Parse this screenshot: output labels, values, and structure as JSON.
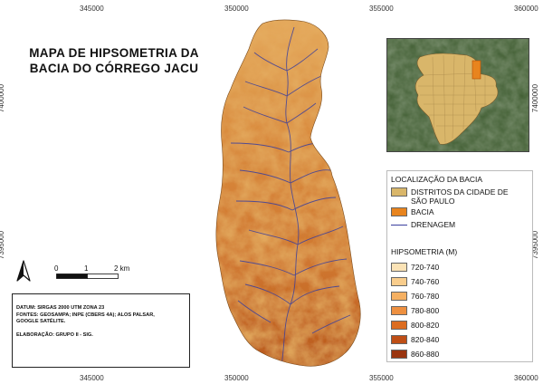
{
  "map": {
    "title_line1": "MAPA DE HIPSOMETRIA DA",
    "title_line2": "BACIA DO CÓRREGO JACU",
    "coords_top": [
      "345000",
      "350000",
      "355000",
      "360000"
    ],
    "coords_bottom": [
      "345000",
      "350000",
      "355000",
      "360000"
    ],
    "coords_left": [
      "7400000",
      "7395000"
    ],
    "coords_right": [
      "7400000",
      "7395000"
    ]
  },
  "scalebar": {
    "label_0": "0",
    "label_1": "1",
    "label_2": "2 km"
  },
  "info": {
    "line1": "DATUM: SIRGAS 2000 UTM ZONA 23",
    "line2": "FONTES: GEOSAMPA; INPE (CBERS 4A); ALOS PALSAR,",
    "line3": "GOOGLE SATÉLITE.",
    "line4": "ELABORAÇÃO: GRUPO II - SIG."
  },
  "legend": {
    "location_title": "LOCALIZAÇÃO DA BACIA",
    "location_items": [
      {
        "label": "DISTRITOS DA CIDADE DE SÃO PAULO",
        "color": "#d9b66a"
      },
      {
        "label": "BACIA",
        "color": "#e8841e"
      },
      {
        "label": "DRENAGEM",
        "color": "#3a3f9e"
      }
    ],
    "hypsometry_title": "HIPSOMETRIA (M)",
    "hypsometry_items": [
      {
        "label": "720-740",
        "color": "#fbe3b6"
      },
      {
        "label": "740-760",
        "color": "#f9cd8c"
      },
      {
        "label": "760-780",
        "color": "#f5b062"
      },
      {
        "label": "780-800",
        "color": "#ee9040"
      },
      {
        "label": "800-820",
        "color": "#dc6d21"
      },
      {
        "label": "820-840",
        "color": "#bf4f16"
      },
      {
        "label": "860-880",
        "color": "#9a3510"
      }
    ]
  }
}
